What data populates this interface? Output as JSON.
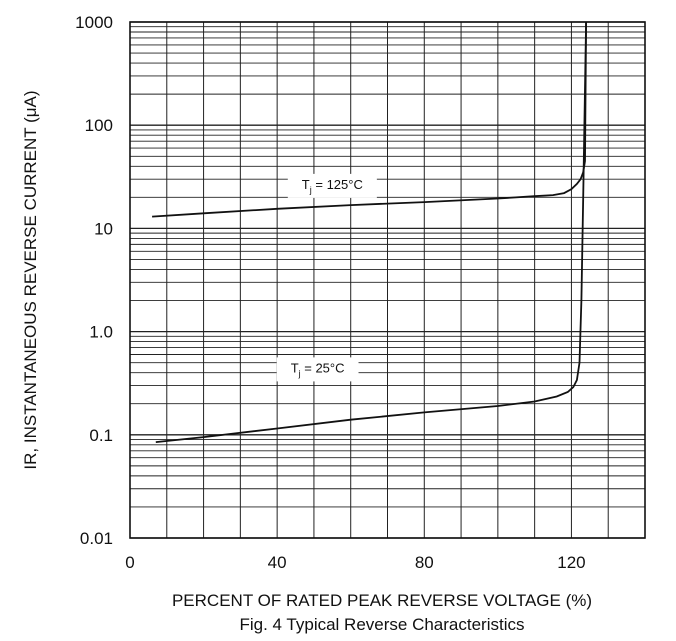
{
  "chart_data": {
    "type": "line",
    "caption": "Fig. 4  Typical Reverse Characteristics",
    "xlabel": "PERCENT OF RATED PEAK REVERSE VOLTAGE (%)",
    "ylabel": "IR, INSTANTANEOUS REVERSE CURRENT (μA)",
    "xlim": [
      0,
      140
    ],
    "ylim": [
      0.01,
      1000
    ],
    "yscale": "log",
    "grid": true,
    "x_ticks": [
      {
        "value": 0,
        "label": "0"
      },
      {
        "value": 40,
        "label": "40"
      },
      {
        "value": 80,
        "label": "80"
      },
      {
        "value": 120,
        "label": "120"
      }
    ],
    "y_ticks": [
      {
        "value": 1000,
        "label": "1000"
      },
      {
        "value": 100,
        "label": "100"
      },
      {
        "value": 10,
        "label": "10"
      },
      {
        "value": 1,
        "label": "1.0"
      },
      {
        "value": 0.1,
        "label": "0.1"
      },
      {
        "value": 0.01,
        "label": "0.01"
      }
    ],
    "series": [
      {
        "name": "T",
        "name_sub": "j",
        "name_rest": " = 125°C",
        "label_at": {
          "x": 55,
          "y": 27
        },
        "x": [
          6,
          20,
          40,
          60,
          80,
          100,
          110,
          115,
          118,
          120,
          121.5,
          122.5,
          123.2,
          123.7,
          124
        ],
        "y": [
          13,
          14,
          15.5,
          16.8,
          18,
          19.5,
          20.5,
          21,
          22,
          24,
          27,
          30,
          35,
          45,
          1000
        ]
      },
      {
        "name": "T",
        "name_sub": "j",
        "name_rest": " = 25°C",
        "label_at": {
          "x": 51,
          "y": 0.45
        },
        "x": [
          7,
          20,
          40,
          60,
          80,
          100,
          110,
          116,
          119,
          120.5,
          121.5,
          122.2,
          122.7,
          123.2,
          124
        ],
        "y": [
          0.085,
          0.095,
          0.115,
          0.14,
          0.165,
          0.19,
          0.21,
          0.235,
          0.26,
          0.29,
          0.34,
          0.5,
          2,
          20,
          1000
        ]
      }
    ]
  }
}
